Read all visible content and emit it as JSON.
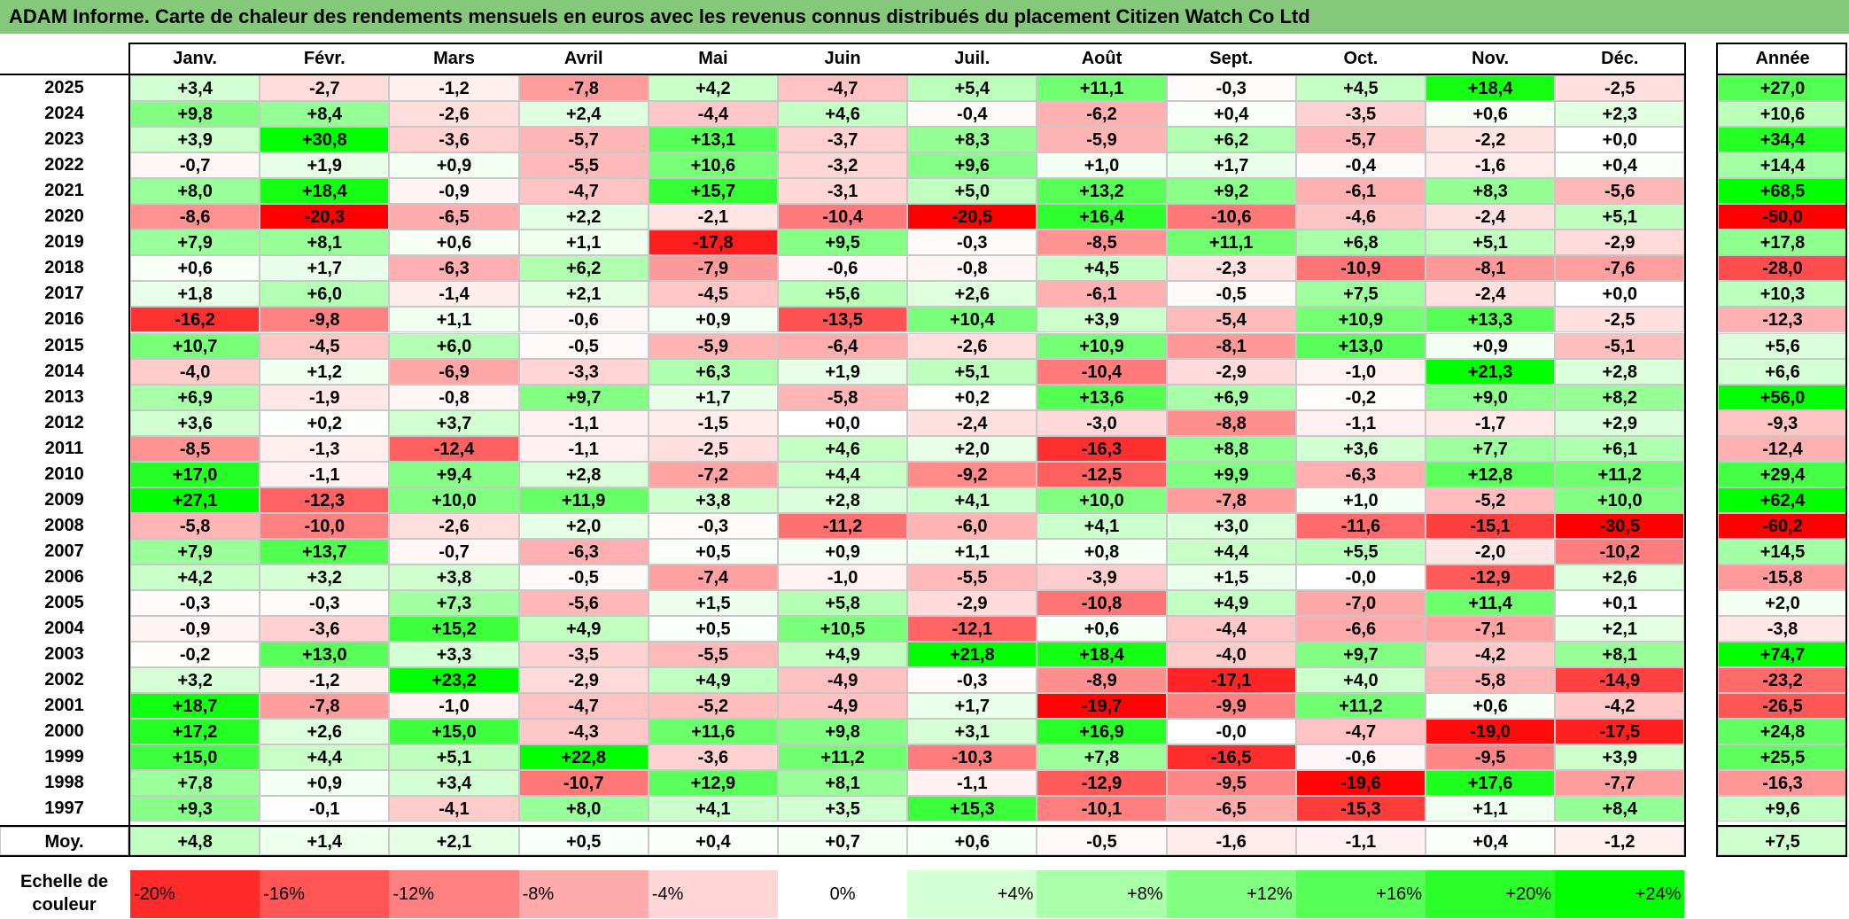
{
  "title": "ADAM Informe. Carte de chaleur des rendements mensuels en euros avec les revenus connus distribués du placement Citizen Watch Co Ltd",
  "chart_data": {
    "type": "heatmap",
    "months": [
      "Janv.",
      "Févr.",
      "Mars",
      "Avril",
      "Mai",
      "Juin",
      "Juil.",
      "Août",
      "Sept.",
      "Oct.",
      "Nov.",
      "Déc."
    ],
    "annual_label": "Année",
    "rows": [
      {
        "year": "2025",
        "values": [
          "+3,4",
          "-2,7",
          "-1,2",
          "-7,8",
          "+4,2",
          "-4,7",
          "+5,4",
          "+11,1",
          "-0,3",
          "+4,5",
          "+18,4",
          "-2,5"
        ],
        "annual": "+27,0"
      },
      {
        "year": "2024",
        "values": [
          "+9,8",
          "+8,4",
          "-2,6",
          "+2,4",
          "-4,4",
          "+4,6",
          "-0,4",
          "-6,2",
          "+0,4",
          "-3,5",
          "+0,6",
          "+2,3"
        ],
        "annual": "+10,6"
      },
      {
        "year": "2023",
        "values": [
          "+3,9",
          "+30,8",
          "-3,6",
          "-5,7",
          "+13,1",
          "-3,7",
          "+8,3",
          "-5,9",
          "+6,2",
          "-5,7",
          "-2,2",
          "+0,0"
        ],
        "annual": "+34,4"
      },
      {
        "year": "2022",
        "values": [
          "-0,7",
          "+1,9",
          "+0,9",
          "-5,5",
          "+10,6",
          "-3,2",
          "+9,6",
          "+1,0",
          "+1,7",
          "-0,4",
          "-1,6",
          "+0,4"
        ],
        "annual": "+14,4"
      },
      {
        "year": "2021",
        "values": [
          "+8,0",
          "+18,4",
          "-0,9",
          "-4,7",
          "+15,7",
          "-3,1",
          "+5,0",
          "+13,2",
          "+9,2",
          "-6,1",
          "+8,3",
          "-5,6"
        ],
        "annual": "+68,5"
      },
      {
        "year": "2020",
        "values": [
          "-8,6",
          "-20,3",
          "-6,5",
          "+2,2",
          "-2,1",
          "-10,4",
          "-20,5",
          "+16,4",
          "-10,6",
          "-4,6",
          "-2,4",
          "+5,1"
        ],
        "annual": "-50,0"
      },
      {
        "year": "2019",
        "values": [
          "+7,9",
          "+8,1",
          "+0,6",
          "+1,1",
          "-17,8",
          "+9,5",
          "-0,3",
          "-8,5",
          "+11,1",
          "+6,8",
          "+5,1",
          "-2,9"
        ],
        "annual": "+17,8"
      },
      {
        "year": "2018",
        "values": [
          "+0,6",
          "+1,7",
          "-6,3",
          "+6,2",
          "-7,9",
          "-0,6",
          "-0,8",
          "+4,5",
          "-2,3",
          "-10,9",
          "-8,1",
          "-7,6"
        ],
        "annual": "-28,0"
      },
      {
        "year": "2017",
        "values": [
          "+1,8",
          "+6,0",
          "-1,4",
          "+2,1",
          "-4,5",
          "+5,6",
          "+2,6",
          "-6,1",
          "-0,5",
          "+7,5",
          "-2,4",
          "+0,0"
        ],
        "annual": "+10,3"
      },
      {
        "year": "2016",
        "values": [
          "-16,2",
          "-9,8",
          "+1,1",
          "-0,6",
          "+0,9",
          "-13,5",
          "+10,4",
          "+3,9",
          "-5,4",
          "+10,9",
          "+13,3",
          "-2,5"
        ],
        "annual": "-12,3"
      },
      {
        "year": "2015",
        "values": [
          "+10,7",
          "-4,5",
          "+6,0",
          "-0,5",
          "-5,9",
          "-6,4",
          "-2,6",
          "+10,9",
          "-8,1",
          "+13,0",
          "+0,9",
          "-5,1"
        ],
        "annual": "+5,6"
      },
      {
        "year": "2014",
        "values": [
          "-4,0",
          "+1,2",
          "-6,9",
          "-3,3",
          "+6,3",
          "+1,9",
          "+5,1",
          "-10,4",
          "-2,9",
          "-1,0",
          "+21,3",
          "+2,8"
        ],
        "annual": "+6,6"
      },
      {
        "year": "2013",
        "values": [
          "+6,9",
          "-1,9",
          "-0,8",
          "+9,7",
          "+1,7",
          "-5,8",
          "+0,2",
          "+13,6",
          "+6,9",
          "-0,2",
          "+9,0",
          "+8,2"
        ],
        "annual": "+56,0"
      },
      {
        "year": "2012",
        "values": [
          "+3,6",
          "+0,2",
          "+3,7",
          "-1,1",
          "-1,5",
          "+0,0",
          "-2,4",
          "-3,0",
          "-8,8",
          "-1,1",
          "-1,7",
          "+2,9"
        ],
        "annual": "-9,3"
      },
      {
        "year": "2011",
        "values": [
          "-8,5",
          "-1,3",
          "-12,4",
          "-1,1",
          "-2,5",
          "+4,6",
          "+2,0",
          "-16,3",
          "+8,8",
          "+3,6",
          "+7,7",
          "+6,1"
        ],
        "annual": "-12,4"
      },
      {
        "year": "2010",
        "values": [
          "+17,0",
          "-1,1",
          "+9,4",
          "+2,8",
          "-7,2",
          "+4,4",
          "-9,2",
          "-12,5",
          "+9,9",
          "-6,3",
          "+12,8",
          "+11,2"
        ],
        "annual": "+29,4"
      },
      {
        "year": "2009",
        "values": [
          "+27,1",
          "-12,3",
          "+10,0",
          "+11,9",
          "+3,8",
          "+2,8",
          "+4,1",
          "+10,0",
          "-7,8",
          "+1,0",
          "-5,2",
          "+10,0"
        ],
        "annual": "+62,4"
      },
      {
        "year": "2008",
        "values": [
          "-5,8",
          "-10,0",
          "-2,6",
          "+2,0",
          "-0,3",
          "-11,2",
          "-6,0",
          "+4,1",
          "+3,0",
          "-11,6",
          "-15,1",
          "-30,5"
        ],
        "annual": "-60,2"
      },
      {
        "year": "2007",
        "values": [
          "+7,9",
          "+13,7",
          "-0,7",
          "-6,3",
          "+0,5",
          "+0,9",
          "+1,1",
          "+0,8",
          "+4,4",
          "+5,5",
          "-2,0",
          "-10,2"
        ],
        "annual": "+14,5"
      },
      {
        "year": "2006",
        "values": [
          "+4,2",
          "+3,2",
          "+3,8",
          "-0,5",
          "-7,4",
          "-1,0",
          "-5,5",
          "-3,9",
          "+1,5",
          "-0,0",
          "-12,9",
          "+2,6"
        ],
        "annual": "-15,8"
      },
      {
        "year": "2005",
        "values": [
          "-0,3",
          "-0,3",
          "+7,3",
          "-5,6",
          "+1,5",
          "+5,8",
          "-2,9",
          "-10,8",
          "+4,9",
          "-7,0",
          "+11,4",
          "+0,1"
        ],
        "annual": "+2,0"
      },
      {
        "year": "2004",
        "values": [
          "-0,9",
          "-3,6",
          "+15,2",
          "+4,9",
          "+0,5",
          "+10,5",
          "-12,1",
          "+0,6",
          "-4,4",
          "-6,6",
          "-7,1",
          "+2,1"
        ],
        "annual": "-3,8"
      },
      {
        "year": "2003",
        "values": [
          "-0,2",
          "+13,0",
          "+3,3",
          "-3,5",
          "-5,5",
          "+4,9",
          "+21,8",
          "+18,4",
          "-4,0",
          "+9,7",
          "-4,2",
          "+8,1"
        ],
        "annual": "+74,7"
      },
      {
        "year": "2002",
        "values": [
          "+3,2",
          "-1,2",
          "+23,2",
          "-2,9",
          "+4,9",
          "-4,9",
          "-0,3",
          "-8,9",
          "-17,1",
          "+4,0",
          "-5,8",
          "-14,9"
        ],
        "annual": "-23,2"
      },
      {
        "year": "2001",
        "values": [
          "+18,7",
          "-7,8",
          "-1,0",
          "-4,7",
          "-5,2",
          "-4,9",
          "+1,7",
          "-19,7",
          "-9,9",
          "+11,2",
          "+0,6",
          "-4,2"
        ],
        "annual": "-26,5"
      },
      {
        "year": "2000",
        "values": [
          "+17,2",
          "+2,6",
          "+15,0",
          "-4,3",
          "+11,6",
          "+9,8",
          "+3,1",
          "+16,9",
          "-0,0",
          "-4,7",
          "-19,0",
          "-17,5"
        ],
        "annual": "+24,8"
      },
      {
        "year": "1999",
        "values": [
          "+15,0",
          "+4,4",
          "+5,1",
          "+22,8",
          "-3,6",
          "+11,2",
          "-10,3",
          "+7,8",
          "-16,5",
          "-0,6",
          "-9,5",
          "+3,9"
        ],
        "annual": "+25,5"
      },
      {
        "year": "1998",
        "values": [
          "+7,8",
          "+0,9",
          "+3,4",
          "-10,7",
          "+12,9",
          "+8,1",
          "-1,1",
          "-12,9",
          "-9,5",
          "-19,6",
          "+17,6",
          "-7,7"
        ],
        "annual": "-16,3"
      },
      {
        "year": "1997",
        "values": [
          "+9,3",
          "-0,1",
          "-4,1",
          "+8,0",
          "+4,1",
          "+3,5",
          "+15,3",
          "-10,1",
          "-6,5",
          "-15,3",
          "+1,1",
          "+8,4"
        ],
        "annual": "+9,6"
      }
    ],
    "average": {
      "label": "Moy.",
      "values": [
        "+4,8",
        "+1,4",
        "+2,1",
        "+0,5",
        "+0,4",
        "+0,7",
        "+0,6",
        "-0,5",
        "-1,6",
        "-1,1",
        "+0,4",
        "-1,2"
      ],
      "annual": "+7,5"
    },
    "color_scale": {
      "label_line1": "Echelle de",
      "label_line2": "couleur",
      "stops": [
        "-20%",
        "-16%",
        "-12%",
        "-8%",
        "-4%",
        "0%",
        "+4%",
        "+8%",
        "+12%",
        "+16%",
        "+20%",
        "+24%"
      ]
    },
    "colors": {
      "negative": "#ff0000",
      "positive": "#00ff00",
      "neutral": "#ffffff"
    }
  }
}
